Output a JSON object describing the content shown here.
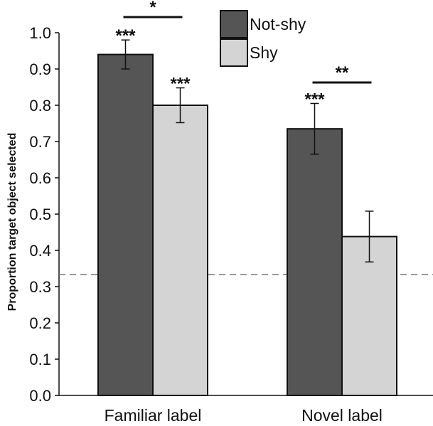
{
  "chart_data": {
    "type": "bar",
    "categories": [
      "Familiar label",
      "Novel label"
    ],
    "series": [
      {
        "name": "Not-shy",
        "values": [
          0.94,
          0.735
        ],
        "errors": [
          0.04,
          0.07
        ],
        "color": "#555555"
      },
      {
        "name": "Shy",
        "values": [
          0.8,
          0.438
        ],
        "errors": [
          0.048,
          0.07
        ],
        "color": "#d4d4d4"
      }
    ],
    "xlabel": "",
    "ylabel": "Proportion target object selected",
    "ylim": [
      0.0,
      1.0
    ],
    "yticks": [
      "0.0",
      "0.1",
      "0.2",
      "0.3",
      "0.4",
      "0.5",
      "0.6",
      "0.7",
      "0.8",
      "0.9",
      "1.0"
    ],
    "reference_line": {
      "value": 0.333,
      "style": "dashed"
    },
    "significance": {
      "bars": [
        [
          "***",
          "***"
        ],
        [
          "***",
          ""
        ]
      ],
      "comparisons": [
        "*",
        "**"
      ]
    },
    "legend_position": "top-center",
    "grid": false
  }
}
